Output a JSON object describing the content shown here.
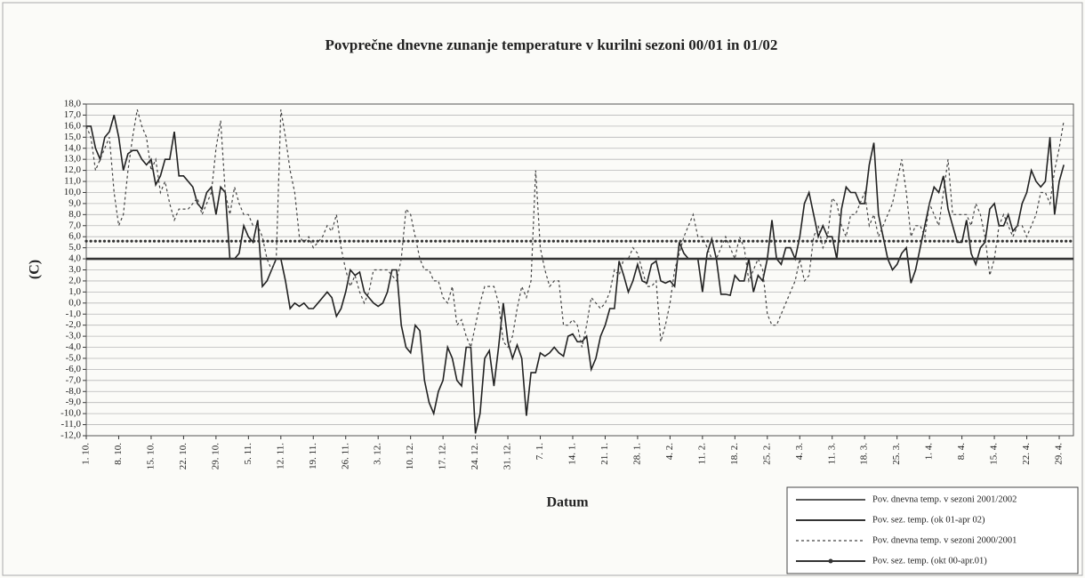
{
  "chart_data": {
    "type": "line",
    "title": "Povprečne dnevne zunanje temperature v kurilni sezoni 00/01 in 01/02",
    "x_label": "Datum",
    "y_label": "(C)",
    "ylim": [
      -12,
      18
    ],
    "yticks": [
      {
        "value": 18,
        "label": "18,0"
      },
      {
        "value": 17,
        "label": "17,0"
      },
      {
        "value": 16,
        "label": "16,0"
      },
      {
        "value": 15,
        "label": "15,0"
      },
      {
        "value": 14,
        "label": "14,0"
      },
      {
        "value": 13,
        "label": "13,0"
      },
      {
        "value": 12,
        "label": "12,0"
      },
      {
        "value": 11,
        "label": "11,0"
      },
      {
        "value": 10,
        "label": "10,0"
      },
      {
        "value": 9,
        "label": "9,0"
      },
      {
        "value": 8,
        "label": "8,0"
      },
      {
        "value": 7,
        "label": "7,0"
      },
      {
        "value": 6,
        "label": "6,0"
      },
      {
        "value": 5,
        "label": "5,0"
      },
      {
        "value": 4,
        "label": "4,0"
      },
      {
        "value": 3,
        "label": "3,0"
      },
      {
        "value": 2,
        "label": "2,0"
      },
      {
        "value": 1,
        "label": "1,0"
      },
      {
        "value": 0,
        "label": "0,0"
      },
      {
        "value": -1,
        "label": "-1,0"
      },
      {
        "value": -2,
        "label": "-2,0"
      },
      {
        "value": -3,
        "label": "-3,0"
      },
      {
        "value": -4,
        "label": "-4,0"
      },
      {
        "value": -5,
        "label": "-5,0"
      },
      {
        "value": -6,
        "label": "-6,0"
      },
      {
        "value": -7,
        "label": "-7,0"
      },
      {
        "value": -8,
        "label": "-8,0"
      },
      {
        "value": -9,
        "label": "-9,0"
      },
      {
        "value": -10,
        "label": "-10,0"
      },
      {
        "value": -11,
        "label": "-11,0"
      },
      {
        "value": -12,
        "label": "-12,0"
      }
    ],
    "grid": true,
    "legend": "bottom-right",
    "categories": [
      "1. 10.",
      null,
      null,
      null,
      null,
      null,
      null,
      "8. 10.",
      null,
      null,
      null,
      null,
      null,
      null,
      "15. 10.",
      null,
      null,
      null,
      null,
      null,
      null,
      "22. 10.",
      null,
      null,
      null,
      null,
      null,
      null,
      "29. 10.",
      null,
      null,
      null,
      null,
      null,
      null,
      "5. 11.",
      null,
      null,
      null,
      null,
      null,
      null,
      "12. 11.",
      null,
      null,
      null,
      null,
      null,
      null,
      "19. 11.",
      null,
      null,
      null,
      null,
      null,
      null,
      "26. 11.",
      null,
      null,
      null,
      null,
      null,
      null,
      "3. 12.",
      null,
      null,
      null,
      null,
      null,
      null,
      "10. 12.",
      null,
      null,
      null,
      null,
      null,
      null,
      "17. 12.",
      null,
      null,
      null,
      null,
      null,
      null,
      "24. 12.",
      null,
      null,
      null,
      null,
      null,
      null,
      "31. 12.",
      null,
      null,
      null,
      null,
      null,
      null,
      "7. 1.",
      null,
      null,
      null,
      null,
      null,
      null,
      "14. 1.",
      null,
      null,
      null,
      null,
      null,
      null,
      "21. 1.",
      null,
      null,
      null,
      null,
      null,
      null,
      "28. 1.",
      null,
      null,
      null,
      null,
      null,
      null,
      "4. 2.",
      null,
      null,
      null,
      null,
      null,
      null,
      "11. 2.",
      null,
      null,
      null,
      null,
      null,
      null,
      "18. 2.",
      null,
      null,
      null,
      null,
      null,
      null,
      "25. 2.",
      null,
      null,
      null,
      null,
      null,
      null,
      "4. 3.",
      null,
      null,
      null,
      null,
      null,
      null,
      "11. 3.",
      null,
      null,
      null,
      null,
      null,
      null,
      "18. 3.",
      null,
      null,
      null,
      null,
      null,
      null,
      "25. 3.",
      null,
      null,
      null,
      null,
      null,
      null,
      "1. 4.",
      null,
      null,
      null,
      null,
      null,
      null,
      "8. 4.",
      null,
      null,
      null,
      null,
      null,
      null,
      "15. 4.",
      null,
      null,
      null,
      null,
      null,
      null,
      "22. 4.",
      null,
      null,
      null,
      null,
      null,
      null,
      "29. 4.",
      null
    ],
    "series": [
      {
        "name": "Pov. dnevna temp. v sezoni 2001/2002",
        "color": "#222222",
        "line_style": "solid",
        "line_width": 1.6,
        "values": [
          16,
          16,
          14,
          13,
          15,
          15.5,
          17,
          15,
          12,
          13.5,
          13.8,
          13.8,
          13,
          12.5,
          13,
          10.7,
          11.5,
          13,
          13,
          15.5,
          11.5,
          11.5,
          11,
          10.5,
          9,
          8.5,
          10,
          10.5,
          8,
          10.5,
          10,
          4,
          4,
          4.5,
          7,
          6,
          5.5,
          7.5,
          1.5,
          2,
          3,
          4,
          4,
          2,
          -0.5,
          0,
          -0.3,
          0,
          -0.5,
          -0.5,
          0,
          0.5,
          1,
          0.5,
          -1.2,
          -0.5,
          1,
          3,
          2.5,
          2.8,
          1,
          0.5,
          0,
          -0.3,
          0,
          1,
          3,
          3,
          -2,
          -4,
          -4.5,
          -2,
          -2.5,
          -7,
          -9,
          -10,
          -8,
          -7,
          -4,
          -5,
          -7,
          -7.5,
          -4,
          -4,
          -11.8,
          -10,
          -5,
          -4.3,
          -7.5,
          -4,
          0,
          -3.5,
          -5,
          -3.8,
          -5,
          -10.2,
          -6.3,
          -6.3,
          -4.5,
          -4.8,
          -4.5,
          -4,
          -4.5,
          -4.8,
          -3,
          -2.8,
          -3.5,
          -3.5,
          -3,
          -6,
          -5,
          -3,
          -2,
          -0.5,
          -0.5,
          3.8,
          2.5,
          1,
          2,
          3.5,
          2,
          1.8,
          3.5,
          3.8,
          2,
          1.8,
          2,
          1.5,
          5.5,
          4.5,
          4,
          4,
          4,
          1,
          4.5,
          5.8,
          4,
          0.8,
          0.8,
          0.7,
          2.5,
          2,
          2,
          4,
          1,
          2.5,
          2,
          4,
          7.5,
          4,
          3.5,
          5,
          5,
          4,
          6,
          9,
          10,
          8,
          6,
          7,
          6,
          6,
          4,
          8.5,
          10.5,
          10,
          10,
          9,
          9,
          12.5,
          14.5,
          8,
          6,
          4,
          3,
          3.5,
          4.5,
          5,
          1.8,
          3,
          5,
          7,
          9,
          10.5,
          10,
          11.5,
          8.5,
          7,
          5.5,
          5.5,
          7.5,
          4.5,
          3.5,
          5,
          5.5,
          8.5,
          9,
          7,
          7,
          8,
          6.5,
          7,
          9,
          10,
          12,
          11,
          10.5,
          11,
          15,
          8,
          11,
          12.5
        ]
      },
      {
        "name": "Pov. sez. temp. (ok 01-apr 02)",
        "color": "#333333",
        "line_style": "solid",
        "line_width": 2.6,
        "value": 4.0
      },
      {
        "name": "Pov. dnevna temp. v sezoni 2000/2001",
        "color": "#444444",
        "line_style": "dashed",
        "line_width": 1.2,
        "values": [
          16,
          15,
          12,
          13,
          14,
          15,
          10,
          7,
          8,
          12,
          15,
          17.5,
          16,
          15,
          12,
          13,
          10,
          11,
          9,
          7.5,
          8.5,
          8.5,
          8.5,
          9,
          9.5,
          8,
          9,
          10,
          14,
          16.5,
          10,
          8,
          10.5,
          9,
          8,
          8,
          7,
          7,
          6,
          4,
          3,
          4,
          17.5,
          15,
          12,
          10,
          6,
          5.5,
          6,
          5,
          5.5,
          6,
          7,
          6.5,
          8,
          5,
          3,
          1.5,
          2.5,
          1,
          0,
          1,
          3,
          3,
          3,
          3,
          2.5,
          2,
          4,
          8.5,
          8,
          6,
          4,
          3,
          3,
          2,
          2,
          0.5,
          0,
          1.5,
          -2,
          -1.5,
          -3,
          -4,
          -2,
          0,
          1.5,
          1.5,
          1.5,
          0,
          -3.5,
          -4,
          -3,
          -0.5,
          1.5,
          0.5,
          2,
          12,
          5,
          3,
          1.5,
          2,
          2,
          -2,
          -2,
          -1.5,
          -2,
          -4,
          -2,
          0.5,
          0,
          -0.5,
          0,
          1,
          3,
          2.5,
          4,
          4,
          5,
          4.5,
          3,
          1.5,
          1.5,
          2,
          -3.5,
          -2,
          0,
          3,
          4.5,
          6,
          7,
          8,
          6,
          6,
          5,
          4,
          4,
          5,
          6,
          5,
          4,
          6,
          5,
          2,
          3,
          4,
          3,
          -1,
          -2,
          -2,
          -1,
          0,
          1,
          2,
          4,
          2,
          2.5,
          6,
          7,
          5,
          6,
          9.5,
          9,
          7,
          6,
          8,
          8,
          9,
          10,
          7,
          8,
          6,
          7,
          8,
          9,
          11,
          13,
          10,
          6,
          7,
          7,
          6,
          9,
          8,
          7,
          10,
          13,
          8,
          8,
          8,
          8,
          7,
          9,
          8,
          6,
          2.5,
          4,
          7,
          8,
          7,
          6,
          7,
          7,
          6,
          7,
          8,
          10,
          10,
          9,
          12,
          14,
          16.5
        ]
      },
      {
        "name": "Pov. sez. temp. (okt 00-apr.01)",
        "color": "#333333",
        "line_style": "dotted-markers",
        "line_width": 3.2,
        "value": 5.6
      }
    ]
  }
}
